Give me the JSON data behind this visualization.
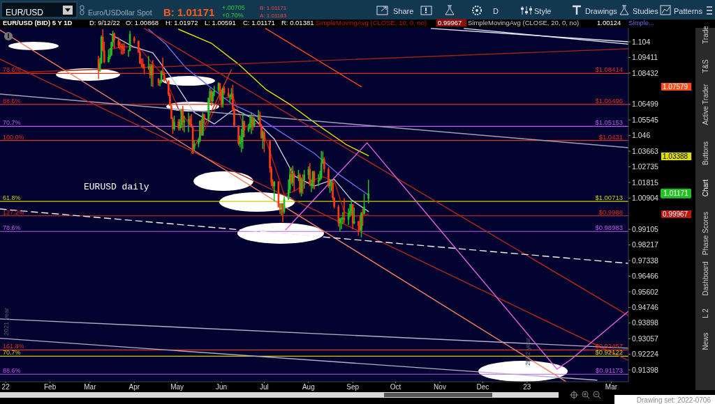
{
  "chart_data": {
    "type": "candlestick",
    "title": "EUR/USD (BID) 5 Y 1D",
    "log": true,
    "xlim": [
      "2021-12-28",
      "2023-03-13"
    ],
    "ylim": [
      0.9078,
      1.1129
    ],
    "xticks": [
      {
        "value": "2022-01-01",
        "label": "22"
      },
      {
        "value": "2022-02-01",
        "label": "Feb"
      },
      {
        "value": "2022-03-01",
        "label": "Mar"
      },
      {
        "value": "2022-04-01",
        "label": "Apr"
      },
      {
        "value": "2022-05-01",
        "label": "May"
      },
      {
        "value": "2022-06-01",
        "label": "Jun"
      },
      {
        "value": "2022-07-01",
        "label": "Jul"
      },
      {
        "value": "2022-08-01",
        "label": "Aug"
      },
      {
        "value": "2022-09-01",
        "label": "Sep"
      },
      {
        "value": "2022-10-01",
        "label": "Oct"
      },
      {
        "value": "2022-11-01",
        "label": "Nov"
      },
      {
        "value": "2022-12-01",
        "label": "Dec"
      },
      {
        "value": "2023-01-01",
        "label": "23"
      },
      {
        "value": "2023-03-01",
        "label": "Mar"
      }
    ],
    "yticks": [
      1.104,
      1.09411,
      1.08432,
      1.06499,
      1.05545,
      1.046,
      1.03663,
      1.02735,
      1.01815,
      1.00904,
      0.99105,
      0.98217,
      0.97338,
      0.96466,
      0.95602,
      0.94746,
      0.93898,
      0.93057,
      0.92224,
      0.91398
    ],
    "x": [
      "2022-03-07",
      "2022-03-08",
      "2022-03-09",
      "2022-03-10",
      "2022-03-11",
      "2022-03-14",
      "2022-03-15",
      "2022-03-16",
      "2022-03-17",
      "2022-03-18",
      "2022-03-21",
      "2022-03-22",
      "2022-03-23",
      "2022-03-24",
      "2022-03-25",
      "2022-03-28",
      "2022-03-29",
      "2022-04-01",
      "2022-04-04",
      "2022-04-05",
      "2022-04-06",
      "2022-04-07",
      "2022-04-08",
      "2022-04-11",
      "2022-04-12",
      "2022-04-13",
      "2022-04-14",
      "2022-04-18",
      "2022-04-19",
      "2022-04-20",
      "2022-04-21",
      "2022-04-22",
      "2022-04-25",
      "2022-04-26",
      "2022-04-27",
      "2022-04-28",
      "2022-04-29",
      "2022-05-02",
      "2022-05-03",
      "2022-05-04",
      "2022-05-05",
      "2022-05-06",
      "2022-05-09",
      "2022-05-10",
      "2022-05-11",
      "2022-05-12",
      "2022-05-13",
      "2022-05-16",
      "2022-05-17",
      "2022-05-18",
      "2022-05-19",
      "2022-05-20",
      "2022-05-23",
      "2022-05-24",
      "2022-05-25",
      "2022-05-26",
      "2022-05-27",
      "2022-05-30",
      "2022-05-31",
      "2022-06-01",
      "2022-06-02",
      "2022-06-03",
      "2022-06-06",
      "2022-06-07",
      "2022-06-08",
      "2022-06-09",
      "2022-06-10",
      "2022-06-13",
      "2022-06-14",
      "2022-06-15",
      "2022-06-16",
      "2022-06-17",
      "2022-06-20",
      "2022-06-21",
      "2022-06-22",
      "2022-06-23",
      "2022-06-24",
      "2022-06-27",
      "2022-06-28",
      "2022-06-29",
      "2022-06-30",
      "2022-07-01",
      "2022-07-05",
      "2022-07-06",
      "2022-07-07",
      "2022-07-08",
      "2022-07-11",
      "2022-07-12",
      "2022-07-13",
      "2022-07-14",
      "2022-07-15",
      "2022-07-18",
      "2022-07-19",
      "2022-07-20",
      "2022-07-21",
      "2022-07-22",
      "2022-07-25",
      "2022-07-26",
      "2022-07-27",
      "2022-07-28",
      "2022-07-29",
      "2022-08-01",
      "2022-08-02",
      "2022-08-03",
      "2022-08-04",
      "2022-08-05",
      "2022-08-08",
      "2022-08-09",
      "2022-08-10",
      "2022-08-11",
      "2022-08-12",
      "2022-08-15",
      "2022-08-16",
      "2022-08-17",
      "2022-08-18",
      "2022-08-19",
      "2022-08-22",
      "2022-08-23",
      "2022-08-24",
      "2022-08-25",
      "2022-08-26",
      "2022-08-29",
      "2022-08-30",
      "2022-08-31",
      "2022-09-01",
      "2022-09-02",
      "2022-09-05",
      "2022-09-06",
      "2022-09-07",
      "2022-09-08",
      "2022-09-09",
      "2022-09-12"
    ],
    "ohlc": [
      [
        1.093,
        1.095,
        1.0806,
        1.0856
      ],
      [
        1.0856,
        1.094,
        1.085,
        1.0906
      ],
      [
        1.0906,
        1.108,
        1.09,
        1.1072
      ],
      [
        1.1072,
        1.112,
        1.098,
        1.0985
      ],
      [
        1.0985,
        1.104,
        1.0905,
        1.0912
      ],
      [
        1.0912,
        1.099,
        1.091,
        1.0943
      ],
      [
        1.0943,
        1.1,
        1.093,
        1.0955
      ],
      [
        1.0955,
        1.104,
        1.095,
        1.1036
      ],
      [
        1.1036,
        1.111,
        1.101,
        1.1093
      ],
      [
        1.1093,
        1.11,
        1.1,
        1.105
      ],
      [
        1.105,
        1.107,
        1.1,
        1.1016
      ],
      [
        1.1016,
        1.104,
        1.099,
        1.1015
      ],
      [
        1.1015,
        1.103,
        1.096,
        1.1005
      ],
      [
        1.1005,
        1.103,
        1.096,
        1.0995
      ],
      [
        1.0995,
        1.103,
        1.0965,
        1.0983
      ],
      [
        1.0983,
        1.099,
        1.0945,
        1.0985
      ],
      [
        1.0985,
        1.111,
        1.098,
        1.109
      ],
      [
        1.1065,
        1.1075,
        1.103,
        1.1045
      ],
      [
        1.1045,
        1.105,
        1.097,
        1.0973
      ],
      [
        1.0973,
        1.099,
        1.09,
        1.0905
      ],
      [
        1.0905,
        1.0935,
        1.088,
        1.09
      ],
      [
        1.09,
        1.0935,
        1.087,
        1.088
      ],
      [
        1.088,
        1.09,
        1.0836,
        1.0875
      ],
      [
        1.0875,
        1.095,
        1.0865,
        1.0885
      ],
      [
        1.0885,
        1.09,
        1.081,
        1.083
      ],
      [
        1.083,
        1.09,
        1.076,
        1.089
      ],
      [
        1.089,
        1.0925,
        1.0757,
        1.083
      ],
      [
        1.081,
        1.081,
        1.0765,
        1.078
      ],
      [
        1.078,
        1.08,
        1.076,
        1.0785
      ],
      [
        1.0785,
        1.086,
        1.078,
        1.085
      ],
      [
        1.085,
        1.094,
        1.083,
        1.0835
      ],
      [
        1.0835,
        1.085,
        1.079,
        1.0795
      ],
      [
        1.0795,
        1.08,
        1.07,
        1.071
      ],
      [
        1.071,
        1.072,
        1.064,
        1.064
      ],
      [
        1.064,
        1.065,
        1.056,
        1.056
      ],
      [
        1.056,
        1.057,
        1.047,
        1.05
      ],
      [
        1.05,
        1.058,
        1.049,
        1.0545
      ],
      [
        1.0545,
        1.056,
        1.049,
        1.0505
      ],
      [
        1.0505,
        1.056,
        1.049,
        1.0525
      ],
      [
        1.0525,
        1.062,
        1.0505,
        1.062
      ],
      [
        1.062,
        1.064,
        1.049,
        1.054
      ],
      [
        1.054,
        1.058,
        1.048,
        1.055
      ],
      [
        1.055,
        1.06,
        1.048,
        1.056
      ],
      [
        1.056,
        1.058,
        1.052,
        1.053
      ],
      [
        1.053,
        1.059,
        1.051,
        1.051
      ],
      [
        1.051,
        1.052,
        1.035,
        1.038
      ],
      [
        1.038,
        1.043,
        1.037,
        1.041
      ],
      [
        1.041,
        1.044,
        1.039,
        1.043
      ],
      [
        1.043,
        1.055,
        1.042,
        1.055
      ],
      [
        1.055,
        1.056,
        1.046,
        1.046
      ],
      [
        1.046,
        1.06,
        1.046,
        1.059
      ],
      [
        1.059,
        1.059,
        1.053,
        1.056
      ],
      [
        1.056,
        1.069,
        1.055,
        1.069
      ],
      [
        1.069,
        1.075,
        1.066,
        1.073
      ],
      [
        1.073,
        1.074,
        1.064,
        1.067
      ],
      [
        1.067,
        1.073,
        1.066,
        1.0725
      ],
      [
        1.0725,
        1.0765,
        1.07,
        1.0735
      ],
      [
        1.0735,
        1.0785,
        1.072,
        1.078
      ],
      [
        1.078,
        1.078,
        1.068,
        1.0735
      ],
      [
        1.0735,
        1.074,
        1.063,
        1.065
      ],
      [
        1.065,
        1.075,
        1.063,
        1.075
      ],
      [
        1.075,
        1.076,
        1.071,
        1.072
      ],
      [
        1.072,
        1.075,
        1.069,
        1.07
      ],
      [
        1.07,
        1.071,
        1.0655,
        1.07
      ],
      [
        1.07,
        1.075,
        1.068,
        1.0715
      ],
      [
        1.0715,
        1.077,
        1.061,
        1.062
      ],
      [
        1.062,
        1.063,
        1.051,
        1.052
      ],
      [
        1.052,
        1.052,
        1.04,
        1.041
      ],
      [
        1.041,
        1.046,
        1.039,
        1.042
      ],
      [
        1.042,
        1.05,
        1.036,
        1.045
      ],
      [
        1.045,
        1.06,
        1.038,
        1.0545
      ],
      [
        1.0545,
        1.055,
        1.045,
        1.049
      ],
      [
        1.049,
        1.053,
        1.048,
        1.051
      ],
      [
        1.051,
        1.058,
        1.05,
        1.0535
      ],
      [
        1.0535,
        1.06,
        1.047,
        1.057
      ],
      [
        1.057,
        1.058,
        1.049,
        1.052
      ],
      [
        1.052,
        1.057,
        1.051,
        1.0555
      ],
      [
        1.0555,
        1.0615,
        1.055,
        1.0585
      ],
      [
        1.0585,
        1.0605,
        1.0515,
        1.052
      ],
      [
        1.052,
        1.053,
        1.044,
        1.0445
      ],
      [
        1.0445,
        1.049,
        1.038,
        1.048
      ],
      [
        1.048,
        1.049,
        1.036,
        1.0425
      ],
      [
        1.0425,
        1.043,
        1.024,
        1.0265
      ],
      [
        1.0265,
        1.0275,
        1.016,
        1.018
      ],
      [
        1.018,
        1.02,
        1.0145,
        1.016
      ],
      [
        1.016,
        1.019,
        1.007,
        1.0185
      ],
      [
        1.0185,
        1.019,
        1.0035,
        1.004
      ],
      [
        1.004,
        1.006,
        0.9998,
        1.0035
      ],
      [
        1.0035,
        1.006,
        0.999,
        1.006
      ],
      [
        1.006,
        1.006,
        0.9952,
        1.001
      ],
      [
        1.001,
        1.01,
        1.0,
        1.0085
      ],
      [
        1.0085,
        1.02,
        1.008,
        1.014
      ],
      [
        1.014,
        1.027,
        1.012,
        1.023
      ],
      [
        1.023,
        1.027,
        1.017,
        1.018
      ],
      [
        1.018,
        1.028,
        1.016,
        1.023
      ],
      [
        1.023,
        1.025,
        1.013,
        1.021
      ],
      [
        1.021,
        1.0255,
        1.019,
        1.0225
      ],
      [
        1.0225,
        1.0235,
        1.0115,
        1.0125
      ],
      [
        1.0125,
        1.021,
        1.01,
        1.02
      ],
      [
        1.02,
        1.023,
        1.0115,
        1.0195
      ],
      [
        1.0195,
        1.0255,
        1.0145,
        1.0225
      ],
      [
        1.0225,
        1.0275,
        1.02,
        1.026
      ],
      [
        1.026,
        1.0295,
        1.016,
        1.0165
      ],
      [
        1.0165,
        1.02,
        1.0125,
        1.0165
      ],
      [
        1.0165,
        1.025,
        1.0145,
        1.0245
      ],
      [
        1.0245,
        1.025,
        1.014,
        1.0185
      ],
      [
        1.0185,
        1.023,
        1.016,
        1.0195
      ],
      [
        1.0195,
        1.025,
        1.019,
        1.021
      ],
      [
        1.021,
        1.0368,
        1.02,
        1.0295
      ],
      [
        1.0295,
        1.0365,
        1.029,
        1.032
      ],
      [
        1.032,
        1.033,
        1.024,
        1.026
      ],
      [
        1.026,
        1.027,
        1.015,
        1.016
      ],
      [
        1.016,
        1.02,
        1.012,
        1.017
      ],
      [
        1.017,
        1.02,
        1.013,
        1.018
      ],
      [
        1.018,
        1.019,
        1.008,
        1.009
      ],
      [
        1.009,
        1.0095,
        1.003,
        1.004
      ],
      [
        1.004,
        1.005,
        0.9925,
        0.9945
      ],
      [
        0.9945,
        0.9975,
        0.99,
        0.997
      ],
      [
        0.997,
        0.998,
        0.991,
        0.997
      ],
      [
        0.997,
        1.001,
        0.994,
        0.9975
      ],
      [
        0.9975,
        1.009,
        0.9945,
        0.9965
      ],
      [
        0.9965,
        1.003,
        0.9935,
        1.0
      ],
      [
        1.0,
        1.0055,
        0.998,
        1.0015
      ],
      [
        1.0015,
        1.008,
        0.999,
        1.0055
      ],
      [
        1.0055,
        1.0055,
        0.991,
        0.9945
      ],
      [
        0.9945,
        1.0035,
        0.994,
        0.9955
      ],
      [
        0.9955,
        0.996,
        0.9875,
        0.993
      ],
      [
        0.993,
        0.999,
        0.99,
        0.9905
      ],
      [
        0.9905,
        1.001,
        0.9865,
        1.0005
      ],
      [
        1.0005,
        1.003,
        0.993,
        1.0
      ],
      [
        1.0,
        1.0115,
        0.9995,
        1.004
      ],
      [
        1.00868,
        1.01972,
        1.00591,
        1.01171
      ]
    ],
    "value_labels": [
      null,
      null,
      null,
      null,
      null,
      null,
      null,
      null,
      null,
      null,
      null,
      null,
      null,
      null,
      null,
      null,
      null,
      null,
      null,
      null,
      null,
      null,
      null,
      null,
      null,
      null,
      null,
      null,
      null,
      null,
      null,
      null,
      null,
      null,
      null,
      null,
      null,
      null,
      null,
      null,
      null,
      null,
      null,
      null,
      null,
      null,
      null,
      null,
      null,
      null,
      null,
      null,
      null,
      null,
      null,
      null,
      null,
      null,
      null,
      null,
      null,
      null,
      null,
      null,
      null,
      null,
      null,
      null,
      null,
      null,
      null,
      null,
      null,
      null,
      null,
      null,
      null,
      null,
      null,
      null,
      null,
      null,
      null,
      null,
      null,
      null,
      null,
      null,
      null,
      null,
      null,
      null,
      null,
      null,
      null,
      null,
      null,
      null,
      null,
      null,
      null,
      null,
      null,
      null,
      null,
      null,
      null,
      null,
      null,
      null,
      null,
      null,
      null,
      null,
      null,
      null,
      null,
      null,
      null,
      null,
      null,
      null,
      null,
      null,
      null,
      null,
      null,
      null,
      null,
      null,
      null,
      "1.01171"
    ],
    "series": [
      {
        "type": "line",
        "name": "SimpleMovingAvg (CLOSE, 10, 0, no)",
        "color": "#b81810",
        "x": [
          "2022-03-14",
          "2022-03-25",
          "2022-04-05",
          "2022-04-14",
          "2022-04-22",
          "2022-05-02",
          "2022-05-13",
          "2022-05-20",
          "2022-05-31",
          "2022-06-09",
          "2022-06-17",
          "2022-06-28",
          "2022-07-08",
          "2022-07-15",
          "2022-07-22",
          "2022-08-02",
          "2022-08-11",
          "2022-08-19",
          "2022-08-26",
          "2022-09-02",
          "2022-09-12"
        ],
        "values": [
          1.099,
          1.101,
          1.1,
          1.09,
          1.0825,
          1.062,
          1.049,
          1.049,
          1.068,
          1.07,
          1.051,
          1.054,
          1.029,
          1.011,
          1.013,
          1.019,
          1.0215,
          1.019,
          1.001,
          0.9985,
          0.99967
        ]
      },
      {
        "type": "line",
        "name": "SimpleMovingAvg (CLOSE, 20, 0, no)",
        "color": "#c8c8d8",
        "x": [
          "2022-03-15",
          "2022-03-31",
          "2022-04-14",
          "2022-04-29",
          "2022-05-13",
          "2022-05-27",
          "2022-06-10",
          "2022-06-24",
          "2022-07-08",
          "2022-07-22",
          "2022-08-05",
          "2022-08-19",
          "2022-08-31",
          "2022-09-12"
        ],
        "values": [
          1.109,
          1.101,
          1.097,
          1.079,
          1.06,
          1.053,
          1.062,
          1.056,
          1.044,
          1.022,
          1.016,
          1.02,
          1.008,
          1.00124
        ]
      },
      {
        "type": "line",
        "name": "Simple...",
        "color": "#6a6af0",
        "x": [
          "2022-04-11",
          "2022-04-23",
          "2022-05-07",
          "2022-05-26",
          "2022-06-09",
          "2022-06-23",
          "2022-07-13",
          "2022-08-05",
          "2022-08-22",
          "2022-09-12"
        ],
        "values": [
          1.112,
          1.1027,
          1.0877,
          1.0743,
          1.0649,
          1.0593,
          1.0479,
          1.0354,
          1.023,
          1.0108
        ]
      },
      {
        "type": "line",
        "color": "#e0e000",
        "x": [
          "2022-05-02",
          "2022-05-25",
          "2022-06-13",
          "2022-07-02",
          "2022-07-19",
          "2022-08-08",
          "2022-08-27",
          "2022-09-12"
        ],
        "values": [
          1.112,
          1.1031,
          1.0899,
          1.0743,
          1.0649,
          1.0521,
          1.0408,
          1.03388
        ]
      },
      {
        "type": "line",
        "color": "#ff4a1a",
        "x": [
          "2022-07-02",
          "2022-09-07"
        ],
        "values": [
          1.1125,
          1.07579
        ]
      },
      {
        "type": "line",
        "color": "#9a2414",
        "x": [
          "2021-12-28",
          "2023-03-13"
        ],
        "values": [
          1.0843,
          1.0996
        ]
      },
      {
        "type": "line",
        "color": "#a0a0b8",
        "x": [
          "2021-12-28",
          "2023-03-13"
        ],
        "values": [
          1.0713,
          1.0387
        ]
      },
      {
        "type": "line",
        "color": "#e8e8f0",
        "x": [
          "2022-10-26",
          "2023-03-13"
        ],
        "values": [
          1.1125,
          1.104
        ]
      },
      {
        "type": "line",
        "color": "#e8e8f0",
        "x": [
          "2022-11-18",
          "2023-03-13"
        ],
        "values": [
          1.1125,
          1.1025
        ]
      },
      {
        "type": "line",
        "color": "#b02a18",
        "x": [
          "2022-04-08",
          "2023-03-13"
        ],
        "values": [
          1.1125,
          0.943
        ]
      },
      {
        "type": "line",
        "color": "#b02a18",
        "x": [
          "2021-12-28",
          "2023-03-13"
        ],
        "values": [
          1.093,
          0.919
        ]
      },
      {
        "type": "line",
        "color": "#f08060",
        "x": [
          "2021-12-28",
          "2023-01-28"
        ],
        "values": [
          1.1115,
          0.908
        ]
      },
      {
        "type": "line",
        "color": "#c0401a",
        "x": [
          "2022-05-11",
          "2022-06-08"
        ],
        "values": [
          1.0354,
          1.0864
        ]
      },
      {
        "type": "line",
        "color": "#f0f0f0",
        "line_style": "dashed",
        "x": [
          "2021-12-28",
          "2023-03-13"
        ],
        "values": [
          1.0027,
          0.9718
        ]
      },
      {
        "type": "line",
        "color": "#b0b0c8",
        "x": [
          "2021-12-28",
          "2023-03-13"
        ],
        "values": [
          0.9412,
          0.9255
        ]
      },
      {
        "type": "line",
        "color": "#b0b0c8",
        "x": [
          "2021-12-28",
          "2023-02-19"
        ],
        "values": [
          0.9308,
          0.9086
        ]
      },
      {
        "type": "line",
        "color": "#e060e0",
        "x": [
          "2022-07-16",
          "2022-09-11",
          "2023-01-22",
          "2023-02-01",
          "2023-03-13"
        ],
        "values": [
          0.9907,
          1.0416,
          0.9144,
          0.9196,
          0.9454
        ]
      }
    ],
    "ref_lines": [
      {
        "axis": "y",
        "value": 1.08414,
        "label": "$1.08414",
        "color": "#e0301e"
      },
      {
        "axis": "y",
        "value": 1.06496,
        "label": "$1.06496",
        "color": "#e0301e"
      },
      {
        "axis": "y",
        "value": 1.05153,
        "label": "$1.05153",
        "color": "#c058f0"
      },
      {
        "axis": "y",
        "value": 1.0431,
        "label": "$1.0431",
        "color": "#e0301e"
      },
      {
        "axis": "y",
        "value": 1.00713,
        "label": "$1.00713",
        "color": "#d0d000"
      },
      {
        "axis": "y",
        "value": 0.9988,
        "label": "$0.9988",
        "color": "#e0301e"
      },
      {
        "axis": "y",
        "value": 0.98983,
        "label": "$0.98983",
        "color": "#c058f0"
      },
      {
        "axis": "y",
        "value": 0.92457,
        "label": "$0.92457",
        "color": "#e0301e"
      },
      {
        "axis": "y",
        "value": 0.92122,
        "label": "$0.92122",
        "color": "#d0d000"
      },
      {
        "axis": "y",
        "value": 0.91173,
        "label": "$0.91173",
        "color": "#c058f0"
      }
    ],
    "annotations": [
      "EUR/USD",
      "Euro/USDollar Spot",
      "B: 1.01171",
      "+.00705",
      "+0.70%",
      "B: 1.01171",
      "A: 1.01183",
      "Share",
      "D",
      "Style",
      "Drawings",
      "Studies",
      "Patterns",
      "D: 9/12/22",
      "O: 1.00868",
      "H: 1.01972",
      "L: 1.00591",
      "C: 1.01171",
      "R: 0.01381",
      "0.99967",
      "1.00124",
      "EURUSD daily",
      "Trade",
      "T&S",
      "Active Trader",
      "Buttons",
      "Chart",
      "Phase Scores",
      "Dashboard",
      "L 2",
      "News",
      "Drawing set: 2022-0706",
      "2021 year",
      "2022 year",
      "1.07579",
      "1.03388",
      "0.99967",
      {
        "text": "78.6%",
        "y": 1.08414
      },
      {
        "text": "88.6%",
        "y": 1.06496
      },
      {
        "text": "70.7%",
        "y": 1.05153
      },
      {
        "text": "100.0%",
        "y": 1.0431
      },
      {
        "text": "61.8%",
        "y": 1.00713
      },
      {
        "text": "127.2%",
        "y": 0.9988
      },
      {
        "text": "78.6%",
        "y": 0.98983
      },
      {
        "text": "161.8%",
        "y": 0.92457
      },
      {
        "text": "70.7%",
        "y": 0.92122
      },
      {
        "text": "88.6%",
        "y": 0.91173
      }
    ]
  }
}
